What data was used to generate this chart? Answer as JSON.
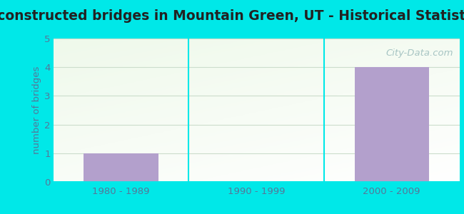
{
  "title": "Reconstructed bridges in Mountain Green, UT - Historical Statistics",
  "categories": [
    "1980 - 1989",
    "1990 - 1999",
    "2000 - 2009"
  ],
  "values": [
    1,
    0,
    4
  ],
  "bar_color": "#b3a0cc",
  "ylabel": "number of bridges",
  "ylim": [
    0,
    5
  ],
  "yticks": [
    0,
    1,
    2,
    3,
    4,
    5
  ],
  "background_outer": "#00e8e8",
  "grid_color": "#ccddcc",
  "title_fontsize": 13.5,
  "axis_label_fontsize": 9.5,
  "tick_fontsize": 9.5,
  "watermark": "City-Data.com",
  "ylabel_color": "#557799",
  "tick_color": "#557799",
  "title_color": "#222222"
}
